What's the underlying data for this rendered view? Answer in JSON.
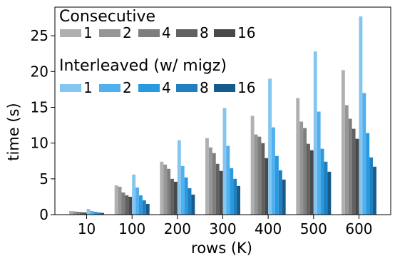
{
  "chart_data": {
    "type": "bar",
    "title": "",
    "xlabel": "rows (K)",
    "ylabel": "time (s)",
    "ylim": [
      0,
      29
    ],
    "yticks": [
      0,
      5,
      10,
      15,
      20,
      25
    ],
    "grid": false,
    "categories": [
      "10",
      "100",
      "200",
      "300",
      "400",
      "500",
      "600"
    ],
    "legend": [
      {
        "title": "Consecutive",
        "series_labels": [
          "1",
          "2",
          "4",
          "8",
          "16"
        ],
        "colors": [
          "#b0b0b0",
          "#969696",
          "#7e7e7e",
          "#626262",
          "#4a4a4a"
        ]
      },
      {
        "title": "Interleaved (w/ migz)",
        "series_labels": [
          "1",
          "2",
          "4",
          "8",
          "16"
        ],
        "colors": [
          "#84c6ef",
          "#52b0ee",
          "#2a9ae0",
          "#1f7fbf",
          "#155c8c"
        ]
      }
    ],
    "series": [
      {
        "name": "Consecutive 1",
        "group": "Consecutive",
        "color": "#b0b0b0",
        "values": [
          0.5,
          4.1,
          7.4,
          10.7,
          13.8,
          16.3,
          20.2
        ]
      },
      {
        "name": "Consecutive 2",
        "group": "Consecutive",
        "color": "#969696",
        "values": [
          0.45,
          3.9,
          7.0,
          9.4,
          11.2,
          13.0,
          15.3
        ]
      },
      {
        "name": "Consecutive 4",
        "group": "Consecutive",
        "color": "#7e7e7e",
        "values": [
          0.4,
          3.1,
          6.4,
          8.6,
          10.9,
          12.1,
          13.4
        ]
      },
      {
        "name": "Consecutive 8",
        "group": "Consecutive",
        "color": "#626262",
        "values": [
          0.35,
          2.7,
          5.0,
          7.1,
          10.0,
          9.9,
          12.0
        ]
      },
      {
        "name": "Consecutive 16",
        "group": "Consecutive",
        "color": "#4a4a4a",
        "values": [
          0.3,
          2.5,
          4.6,
          6.1,
          7.9,
          9.0,
          10.6
        ]
      },
      {
        "name": "Interleaved 1",
        "group": "Interleaved (w/ migz)",
        "color": "#84c6ef",
        "values": [
          0.8,
          5.6,
          10.4,
          14.9,
          19.0,
          22.8,
          27.7
        ]
      },
      {
        "name": "Interleaved 2",
        "group": "Interleaved (w/ migz)",
        "color": "#52b0ee",
        "values": [
          0.5,
          3.8,
          6.8,
          9.6,
          12.2,
          14.4,
          17.0
        ]
      },
      {
        "name": "Interleaved 4",
        "group": "Interleaved (w/ migz)",
        "color": "#2a9ae0",
        "values": [
          0.4,
          2.7,
          5.2,
          6.5,
          8.2,
          9.2,
          11.4
        ]
      },
      {
        "name": "Interleaved 8",
        "group": "Interleaved (w/ migz)",
        "color": "#1f7fbf",
        "values": [
          0.3,
          2.0,
          3.7,
          5.0,
          6.2,
          7.4,
          8.0
        ]
      },
      {
        "name": "Interleaved 16",
        "group": "Interleaved (w/ migz)",
        "color": "#155c8c",
        "values": [
          0.25,
          1.5,
          2.8,
          4.0,
          4.9,
          6.0,
          6.7
        ]
      }
    ]
  }
}
